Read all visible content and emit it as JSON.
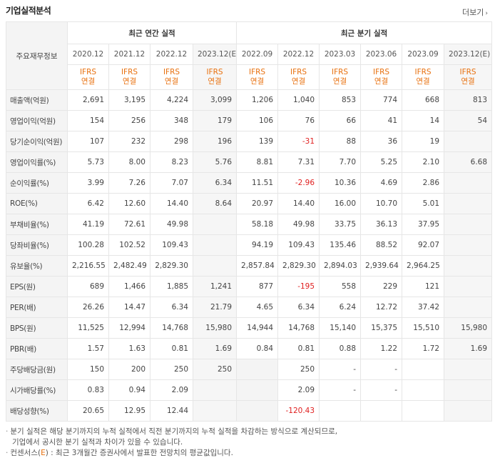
{
  "title": "기업실적분석",
  "more_label": "더보기",
  "header": {
    "label": "주요재무정보",
    "annual_group": "최근 연간 실적",
    "quarter_group": "최근 분기 실적",
    "periods": [
      "2020.12",
      "2021.12",
      "2022.12",
      "2023.12(E)",
      "2022.09",
      "2022.12",
      "2023.03",
      "2023.06",
      "2023.09",
      "2023.12(E)"
    ],
    "ifrs_top": "IFRS",
    "ifrs_bottom": "연결"
  },
  "rows": [
    {
      "label": "매출액(억원)",
      "values": [
        "2,691",
        "3,195",
        "4,224",
        "3,099",
        "1,206",
        "1,040",
        "853",
        "774",
        "668",
        "813"
      ]
    },
    {
      "label": "영업이익(억원)",
      "values": [
        "154",
        "256",
        "348",
        "179",
        "106",
        "76",
        "66",
        "41",
        "14",
        "54"
      ]
    },
    {
      "label": "당기순이익(억원)",
      "values": [
        "107",
        "232",
        "298",
        "196",
        "139",
        "-31",
        "88",
        "36",
        "19",
        ""
      ]
    },
    {
      "label": "영업이익률(%)",
      "values": [
        "5.73",
        "8.00",
        "8.23",
        "5.76",
        "8.81",
        "7.31",
        "7.70",
        "5.25",
        "2.10",
        "6.68"
      ]
    },
    {
      "label": "순이익률(%)",
      "values": [
        "3.99",
        "7.26",
        "7.07",
        "6.34",
        "11.51",
        "-2.96",
        "10.36",
        "4.69",
        "2.86",
        ""
      ]
    },
    {
      "label": "ROE(%)",
      "values": [
        "6.42",
        "12.60",
        "14.40",
        "8.64",
        "20.97",
        "14.40",
        "16.00",
        "10.70",
        "5.01",
        ""
      ]
    },
    {
      "label": "부채비율(%)",
      "values": [
        "41.19",
        "72.61",
        "49.98",
        "",
        "58.18",
        "49.98",
        "33.75",
        "36.13",
        "37.95",
        ""
      ]
    },
    {
      "label": "당좌비율(%)",
      "values": [
        "100.28",
        "102.52",
        "109.43",
        "",
        "94.19",
        "109.43",
        "135.46",
        "88.52",
        "92.07",
        ""
      ]
    },
    {
      "label": "유보율(%)",
      "values": [
        "2,216.55",
        "2,482.49",
        "2,829.30",
        "",
        "2,857.84",
        "2,829.30",
        "2,894.03",
        "2,939.64",
        "2,964.25",
        ""
      ]
    },
    {
      "label": "EPS(원)",
      "values": [
        "689",
        "1,466",
        "1,885",
        "1,241",
        "877",
        "-195",
        "558",
        "229",
        "121",
        ""
      ]
    },
    {
      "label": "PER(배)",
      "values": [
        "26.26",
        "14.47",
        "6.34",
        "21.79",
        "4.65",
        "6.34",
        "6.24",
        "12.72",
        "37.42",
        ""
      ]
    },
    {
      "label": "BPS(원)",
      "values": [
        "11,525",
        "12,994",
        "14,768",
        "15,980",
        "14,944",
        "14,768",
        "15,140",
        "15,375",
        "15,510",
        "15,980"
      ]
    },
    {
      "label": "PBR(배)",
      "values": [
        "1.57",
        "1.63",
        "0.81",
        "1.69",
        "0.84",
        "0.81",
        "0.88",
        "1.22",
        "1.72",
        "1.69"
      ]
    },
    {
      "label": "주당배당금(원)",
      "values": [
        "150",
        "200",
        "250",
        "250",
        "",
        "250",
        "-",
        "-",
        "",
        ""
      ]
    },
    {
      "label": "시가배당률(%)",
      "values": [
        "0.83",
        "0.94",
        "2.09",
        "",
        "",
        "2.09",
        "-",
        "-",
        "",
        ""
      ]
    },
    {
      "label": "배당성향(%)",
      "values": [
        "20.65",
        "12.95",
        "12.44",
        "",
        "",
        "-120.43",
        "",
        "",
        "",
        ""
      ]
    }
  ],
  "notes": {
    "line1": "분기 실적은 해당 분기까지의 누적 실적에서 직전 분기까지의 누적 실적을 차감하는 방식으로 계산되므로,",
    "line2": "기업에서 공시한 분기 실적과 차이가 있을 수 있습니다.",
    "line3_a": "컨센서스(",
    "line3_e": "E",
    "line3_b": ") : 최근 3개월간 증권사에서 발표한 전망치의 평균값입니다."
  }
}
